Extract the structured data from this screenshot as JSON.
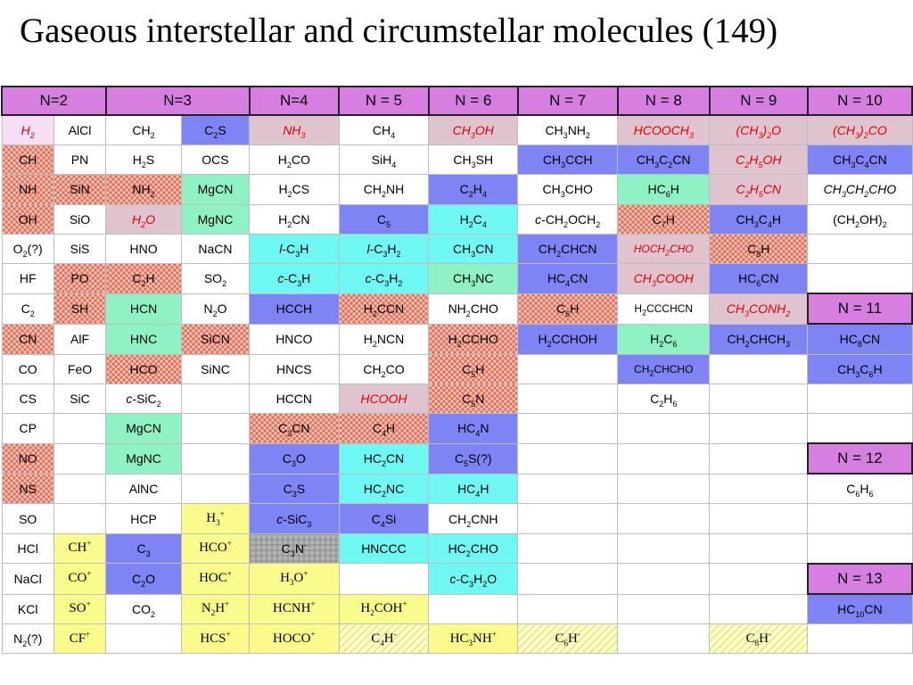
{
  "title": "Gaseous interstellar and circumstellar molecules (149)",
  "colors": {
    "header_violet": "#d77fe1",
    "pink": "#dfc3cf",
    "blue": "#7f84f4",
    "cyan": "#6ff7f4",
    "green": "#8ff2c4",
    "yellow": "#fbfb8d",
    "light_pink": "#f6dff5",
    "checker_red": "#e36a50",
    "gray": "#b3b3b3",
    "red_text": "#e00000"
  },
  "headers": [
    "N=2",
    "N=3",
    "N=4",
    "N = 5",
    "N = 6",
    "N = 7",
    "N = 8",
    "N = 9",
    "N = 10"
  ],
  "rows": [
    [
      {
        "t": "H_{2}",
        "c": "lp",
        "r": 1
      },
      {
        "t": "AlCl"
      },
      {
        "t": "CH_{2}"
      },
      {
        "t": "C_{2}S",
        "c": "bl"
      },
      {
        "t": "NH_{3}",
        "c": "pk",
        "r": 1
      },
      {
        "t": "CH_{4}"
      },
      {
        "t": "CH_{3}OH",
        "c": "pk",
        "r": 1
      },
      {
        "t": "CH_{3}NH_{2}"
      },
      {
        "t": "HCOOCH_{3}",
        "c": "pk",
        "r": 1
      },
      {
        "t": "(CH_{3})_{2}O",
        "c": "pk",
        "r": 1
      },
      {
        "t": "(CH_{3})_{2}CO",
        "c": "pk",
        "r": 1
      }
    ],
    [
      {
        "t": "CH",
        "c": "ck"
      },
      {
        "t": "PN"
      },
      {
        "t": "H_{2}S"
      },
      {
        "t": "OCS"
      },
      {
        "t": "H_{2}CO"
      },
      {
        "t": "SiH_{4}"
      },
      {
        "t": "CH_{3}SH"
      },
      {
        "t": "CH_{3}CCH",
        "c": "bl"
      },
      {
        "t": "CH_{3}C_{2}CN",
        "c": "bl"
      },
      {
        "t": "C_{2}H_{5}OH",
        "c": "pk",
        "r": 1
      },
      {
        "t": "CH_{3}C_{4}CN",
        "c": "bl"
      }
    ],
    [
      {
        "t": "NH",
        "c": "ck"
      },
      {
        "t": "SiN",
        "c": "ck"
      },
      {
        "t": "NH_{2}",
        "c": "ck"
      },
      {
        "t": "MgCN",
        "c": "gr"
      },
      {
        "t": "H_{2}CS"
      },
      {
        "t": "CH_{2}NH"
      },
      {
        "t": "C_{2}H_{4}",
        "c": "bl"
      },
      {
        "t": "CH_{3}CHO"
      },
      {
        "t": "HC_{6}H",
        "c": "gr"
      },
      {
        "t": "C_{2}H_{5}CN",
        "c": "pk",
        "r": 1
      },
      {
        "t": "CH_{3}CH_{2}CHO",
        "i": 1
      }
    ],
    [
      {
        "t": "OH",
        "c": "ck"
      },
      {
        "t": "SiO"
      },
      {
        "t": "H_{2}O",
        "c": "pk",
        "r": 1
      },
      {
        "t": "MgNC",
        "c": "gr"
      },
      {
        "t": "H_{2}CN"
      },
      {
        "t": "C_{5}",
        "c": "bl"
      },
      {
        "t": "H_{2}C_{4}",
        "c": "cy"
      },
      {
        "t": "c-CH_{2}OCH_{2}"
      },
      {
        "t": "C_{7}H",
        "c": "ck"
      },
      {
        "t": "CH_{3}C_{4}H",
        "c": "bl"
      },
      {
        "t": "(CH_{2}OH)_{2}"
      }
    ],
    [
      {
        "t": "O_{2}(?)"
      },
      {
        "t": "SiS"
      },
      {
        "t": "HNO"
      },
      {
        "t": "NaCN"
      },
      {
        "t": "l-C_{3}H",
        "c": "cy"
      },
      {
        "t": "l-C_{3}H_{2}",
        "c": "cy"
      },
      {
        "t": "CH_{3}CN",
        "c": "cy"
      },
      {
        "t": "CH_{2}CHCN",
        "c": "bl"
      },
      {
        "t": "HOCH_{2}CHO",
        "c": "pk",
        "r": 1,
        "s": 1
      },
      {
        "t": "C_{8}H",
        "c": "ck"
      },
      {
        "t": ""
      }
    ],
    [
      {
        "t": "HF"
      },
      {
        "t": "PO",
        "c": "ck"
      },
      {
        "t": "C_{2}H",
        "c": "ck"
      },
      {
        "t": "SO_{2}"
      },
      {
        "t": "c-C_{3}H",
        "c": "cy"
      },
      {
        "t": "c-C_{3}H_{2}",
        "c": "cy"
      },
      {
        "t": "CH_{3}NC",
        "c": "gr"
      },
      {
        "t": "HC_{4}CN",
        "c": "bl"
      },
      {
        "t": "CH_{3}COOH",
        "c": "pk",
        "r": 1
      },
      {
        "t": "HC_{6}CN",
        "c": "bl"
      },
      {
        "t": ""
      }
    ],
    [
      {
        "t": "C_{2}"
      },
      {
        "t": "SH",
        "c": "ck"
      },
      {
        "t": "HCN",
        "c": "gr"
      },
      {
        "t": "N_{2}O"
      },
      {
        "t": "HCCH",
        "c": "bl"
      },
      {
        "t": "H_{2}CCN",
        "c": "ck"
      },
      {
        "t": "NH_{2}CHO"
      },
      {
        "t": "C_{6}H",
        "c": "ck"
      },
      {
        "t": "H_{2}CCCHCN",
        "s": 1
      },
      {
        "t": "CH_{3}CONH_{2}",
        "c": "pk",
        "r": 1
      },
      {
        "t": "N = 11",
        "c": "v",
        "h": 1
      }
    ],
    [
      {
        "t": "CN",
        "c": "ck"
      },
      {
        "t": "AlF"
      },
      {
        "t": "HNC",
        "c": "gr"
      },
      {
        "t": "SiCN",
        "c": "ck"
      },
      {
        "t": "HNCO"
      },
      {
        "t": "H_{2}NCN"
      },
      {
        "t": "H_{2}CCHO",
        "c": "ck"
      },
      {
        "t": "H_{2}CCHOH",
        "c": "bl"
      },
      {
        "t": "H_{2}C_{6}",
        "c": "gr"
      },
      {
        "t": "CH_{2}CHCH_{3}",
        "c": "bl"
      },
      {
        "t": "HC_{8}CN",
        "c": "bl"
      }
    ],
    [
      {
        "t": "CO"
      },
      {
        "t": "FeO"
      },
      {
        "t": "HCO",
        "c": "ck"
      },
      {
        "t": "SiNC"
      },
      {
        "t": "HNCS"
      },
      {
        "t": "CH_{2}CO"
      },
      {
        "t": "C_{5}H",
        "c": "ck"
      },
      {
        "t": ""
      },
      {
        "t": "CH_{2}CHCHO",
        "c": "bl",
        "s": 1
      },
      {
        "t": ""
      },
      {
        "t": "CH_{3}C_{6}H",
        "c": "bl"
      }
    ],
    [
      {
        "t": "CS"
      },
      {
        "t": "SiC"
      },
      {
        "t": "c-SiC_{2}"
      },
      {
        "t": ""
      },
      {
        "t": "HCCN"
      },
      {
        "t": "HCOOH",
        "c": "pk",
        "r": 1
      },
      {
        "t": "C_{5}N",
        "c": "ck"
      },
      {
        "t": ""
      },
      {
        "t": "C_{2}H_{6}"
      },
      {
        "t": ""
      },
      {
        "t": ""
      }
    ],
    [
      {
        "t": "CP"
      },
      {
        "t": ""
      },
      {
        "t": "MgCN",
        "c": "gr"
      },
      {
        "t": ""
      },
      {
        "t": "C_{3}CN",
        "c": "ck"
      },
      {
        "t": "C_{4}H",
        "c": "ck"
      },
      {
        "t": "HC_{4}N",
        "c": "bl"
      },
      {
        "t": ""
      },
      {
        "t": ""
      },
      {
        "t": ""
      },
      {
        "t": ""
      }
    ],
    [
      {
        "t": "NO",
        "c": "ck"
      },
      {
        "t": ""
      },
      {
        "t": "MgNC",
        "c": "gr"
      },
      {
        "t": ""
      },
      {
        "t": "C_{3}O",
        "c": "bl"
      },
      {
        "t": "HC_{2}CN",
        "c": "cy"
      },
      {
        "t": "C_{5}S(?)",
        "c": "bl"
      },
      {
        "t": ""
      },
      {
        "t": ""
      },
      {
        "t": ""
      },
      {
        "t": "N = 12",
        "c": "v",
        "h": 1
      }
    ],
    [
      {
        "t": "NS",
        "c": "ck"
      },
      {
        "t": ""
      },
      {
        "t": "AlNC"
      },
      {
        "t": ""
      },
      {
        "t": "C_{3}S",
        "c": "bl"
      },
      {
        "t": "HC_{2}NC",
        "c": "cy"
      },
      {
        "t": "HC_{4}H",
        "c": "cy"
      },
      {
        "t": ""
      },
      {
        "t": ""
      },
      {
        "t": ""
      },
      {
        "t": "C_{6}H_{6}"
      }
    ],
    [
      {
        "t": "SO"
      },
      {
        "t": ""
      },
      {
        "t": "HCP"
      },
      {
        "t": "H_{3}^{+}",
        "c": "ye",
        "f": 1
      },
      {
        "t": "c-SiC_{3}",
        "c": "bl"
      },
      {
        "t": "C_{4}Si",
        "c": "bl"
      },
      {
        "t": "CH_{2}CNH"
      },
      {
        "t": ""
      },
      {
        "t": ""
      },
      {
        "t": ""
      },
      {
        "t": ""
      }
    ],
    [
      {
        "t": "HCl"
      },
      {
        "t": "CH^{+}",
        "c": "ye",
        "f": 1
      },
      {
        "t": "C_{3}",
        "c": "bl"
      },
      {
        "t": "HCO^{+}",
        "c": "ye",
        "f": 1
      },
      {
        "t": "C_{3}N^{-}",
        "c": "gy"
      },
      {
        "t": "HNCCC",
        "c": "cy"
      },
      {
        "t": "HC_{2}CHO",
        "c": "cy"
      },
      {
        "t": ""
      },
      {
        "t": ""
      },
      {
        "t": ""
      },
      {
        "t": ""
      }
    ],
    [
      {
        "t": "NaCl"
      },
      {
        "t": "CO^{+}",
        "c": "ye",
        "f": 1
      },
      {
        "t": "C_{2}O",
        "c": "bl"
      },
      {
        "t": "HOC^{+}",
        "c": "ye",
        "f": 1
      },
      {
        "t": "H_{3}O^{+}",
        "c": "ye",
        "f": 1
      },
      {
        "t": ""
      },
      {
        "t": "c-C_{3}H_{2}O",
        "c": "cy"
      },
      {
        "t": ""
      },
      {
        "t": ""
      },
      {
        "t": ""
      },
      {
        "t": "N = 13",
        "c": "v",
        "h": 1
      }
    ],
    [
      {
        "t": "KCl"
      },
      {
        "t": "SO^{+}",
        "c": "ye",
        "f": 1
      },
      {
        "t": "CO_{2}"
      },
      {
        "t": "N_{2}H^{+}",
        "c": "ye",
        "f": 1
      },
      {
        "t": "HCNH^{+}",
        "c": "ye",
        "f": 1
      },
      {
        "t": "H_{2}COH^{+}",
        "c": "ye",
        "f": 1
      },
      {
        "t": ""
      },
      {
        "t": ""
      },
      {
        "t": ""
      },
      {
        "t": ""
      },
      {
        "t": "HC_{10}CN",
        "c": "bl"
      }
    ],
    [
      {
        "t": "N_{2}(?)"
      },
      {
        "t": "CF^{+}",
        "c": "ye",
        "f": 1
      },
      {
        "t": ""
      },
      {
        "t": "HCS^{+}",
        "c": "ye",
        "f": 1
      },
      {
        "t": "HOCO^{+}",
        "c": "ye",
        "f": 1
      },
      {
        "t": "C_{4}H^{-}",
        "c": "st",
        "f": 1
      },
      {
        "t": "HC_{3}NH^{+}",
        "c": "ye",
        "f": 1
      },
      {
        "t": "C_{6}H^{-}",
        "c": "st",
        "f": 1
      },
      {
        "t": ""
      },
      {
        "t": "C_{8}H^{-}",
        "c": "st",
        "f": 1
      },
      {
        "t": ""
      }
    ]
  ]
}
